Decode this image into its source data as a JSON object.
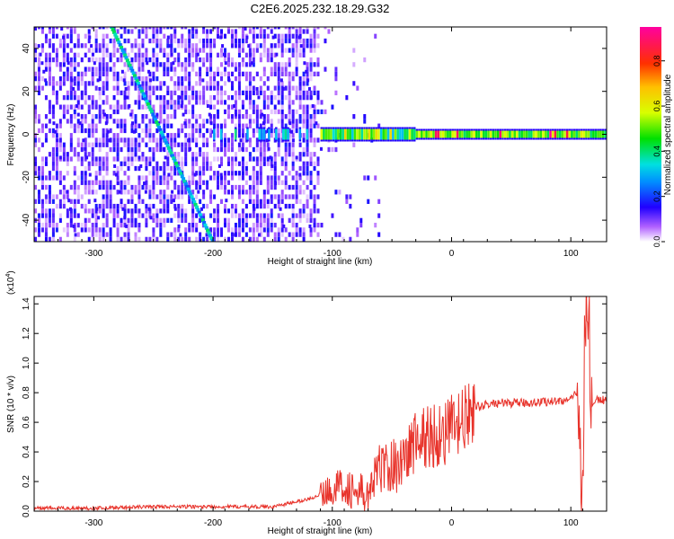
{
  "title": "C2E6.2025.232.18.29.G32",
  "chart_data": [
    {
      "type": "heatmap",
      "xlabel": "Height of straight line (km)",
      "ylabel": "Frequency (Hz)",
      "xlim": [
        -350,
        130
      ],
      "ylim": [
        -50,
        50
      ],
      "xticks": [
        -300,
        -200,
        -100,
        0,
        100
      ],
      "xtick_labels": [
        "-300",
        "-200",
        "-100",
        "0",
        "100"
      ],
      "yticks": [
        -40,
        -20,
        0,
        20,
        40
      ],
      "ytick_labels": [
        "-40",
        "-20",
        "0",
        "20",
        "40"
      ],
      "colorbar": {
        "label": "Normalized spectral amplitude",
        "range": [
          0,
          0.95
        ],
        "ticks": [
          0.0,
          0.2,
          0.4,
          0.6,
          0.8
        ],
        "tick_labels": [
          "0.0",
          "0.2",
          "0.4",
          "0.6",
          "0.8"
        ]
      },
      "features": [
        {
          "name": "diagonal-streak",
          "from": [
            -285,
            50
          ],
          "to": [
            -200,
            -50
          ],
          "amplitude": 0.35
        },
        {
          "name": "zero-frequency-band",
          "x_range": [
            -110,
            130
          ],
          "frequency": 0,
          "amplitude": 0.5
        },
        {
          "name": "band-peak",
          "x_range": [
            -25,
            100
          ],
          "frequency": 0,
          "amplitude": 0.9
        }
      ]
    },
    {
      "type": "line",
      "xlabel": "Height of straight line (km)",
      "ylabel": "SNR (10 * v/v)",
      "y_multiplier_label": "(x10",
      "y_multiplier_exp": "4",
      "xlim": [
        -350,
        130
      ],
      "ylim": [
        0,
        1.45
      ],
      "xticks": [
        -300,
        -200,
        -100,
        0,
        100
      ],
      "xtick_labels": [
        "-300",
        "-200",
        "-100",
        "0",
        "100"
      ],
      "yticks": [
        0.0,
        0.2,
        0.4,
        0.6,
        0.8,
        1.0,
        1.2,
        1.4
      ],
      "ytick_labels": [
        "0.0",
        "0.2",
        "0.4",
        "0.6",
        "0.8",
        "1.0",
        "1.2",
        "1.4"
      ],
      "series": [
        {
          "name": "SNR",
          "color": "#e8332b",
          "x": [
            -350,
            -300,
            -250,
            -200,
            -150,
            -120,
            -100,
            -90,
            -80,
            -70,
            -60,
            -50,
            -40,
            -30,
            -20,
            -10,
            0,
            10,
            20,
            30,
            40,
            60,
            80,
            100,
            105,
            110,
            112,
            115,
            118,
            120,
            130
          ],
          "y": [
            0.02,
            0.02,
            0.03,
            0.03,
            0.03,
            0.08,
            0.15,
            0.18,
            0.12,
            0.1,
            0.3,
            0.3,
            0.35,
            0.48,
            0.5,
            0.52,
            0.55,
            0.6,
            0.7,
            0.72,
            0.73,
            0.73,
            0.74,
            0.75,
            0.8,
            0.2,
            1.4,
            1.2,
            0.7,
            0.75,
            0.75
          ]
        }
      ]
    }
  ]
}
